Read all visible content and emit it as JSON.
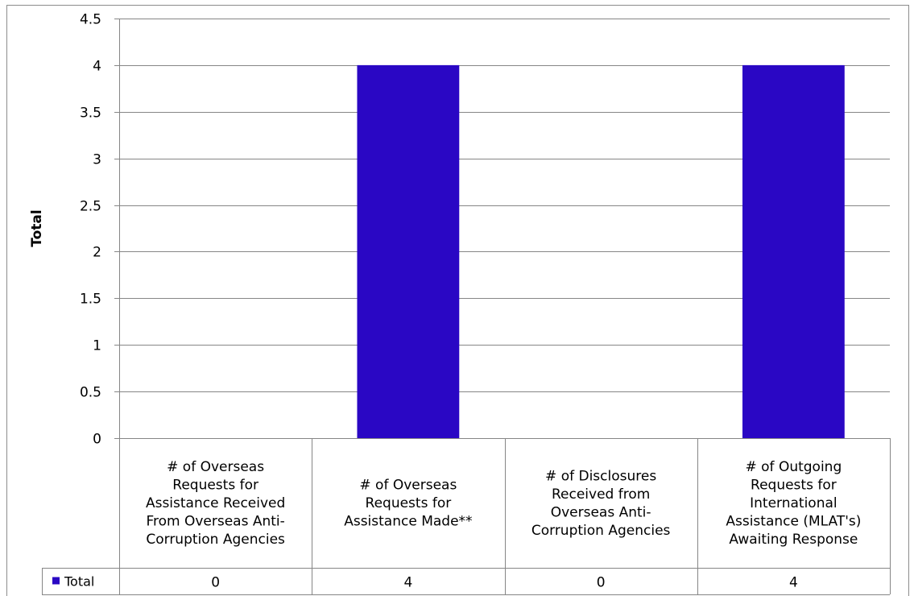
{
  "chart_data": {
    "type": "bar",
    "categories": [
      "# of Overseas Requests for Assistance Received From Overseas Anti-Corruption Agencies",
      "# of Overseas Requests for Assistance Made**",
      "# of Disclosures Received from Overseas Anti-Corruption Agencies",
      "# of Outgoing Requests for International Assistance (MLAT's) Awaiting Response"
    ],
    "category_lines": [
      [
        "# of Overseas",
        "Requests for",
        "Assistance Received",
        "From Overseas Anti-",
        "Corruption Agencies"
      ],
      [
        "# of Overseas",
        "Requests for",
        "Assistance Made**"
      ],
      [
        "# of Disclosures",
        "Received from",
        "Overseas Anti-",
        "Corruption Agencies"
      ],
      [
        "# of Outgoing",
        "Requests for",
        "International",
        "Assistance (MLAT's)",
        "Awaiting Response"
      ]
    ],
    "series": [
      {
        "name": "Total",
        "values": [
          0,
          4,
          0,
          4
        ],
        "color": "#2a07c4"
      }
    ],
    "ylabel": "Total",
    "ylim": [
      0,
      4.5
    ],
    "yticks": [
      0,
      0.5,
      1,
      1.5,
      2,
      2.5,
      3,
      3.5,
      4,
      4.5
    ],
    "ytick_labels": [
      "0",
      "0.5",
      "1",
      "1.5",
      "2",
      "2.5",
      "3",
      "3.5",
      "4",
      "4.5"
    ],
    "grid": true,
    "legend": "data-table",
    "data_table": true
  }
}
